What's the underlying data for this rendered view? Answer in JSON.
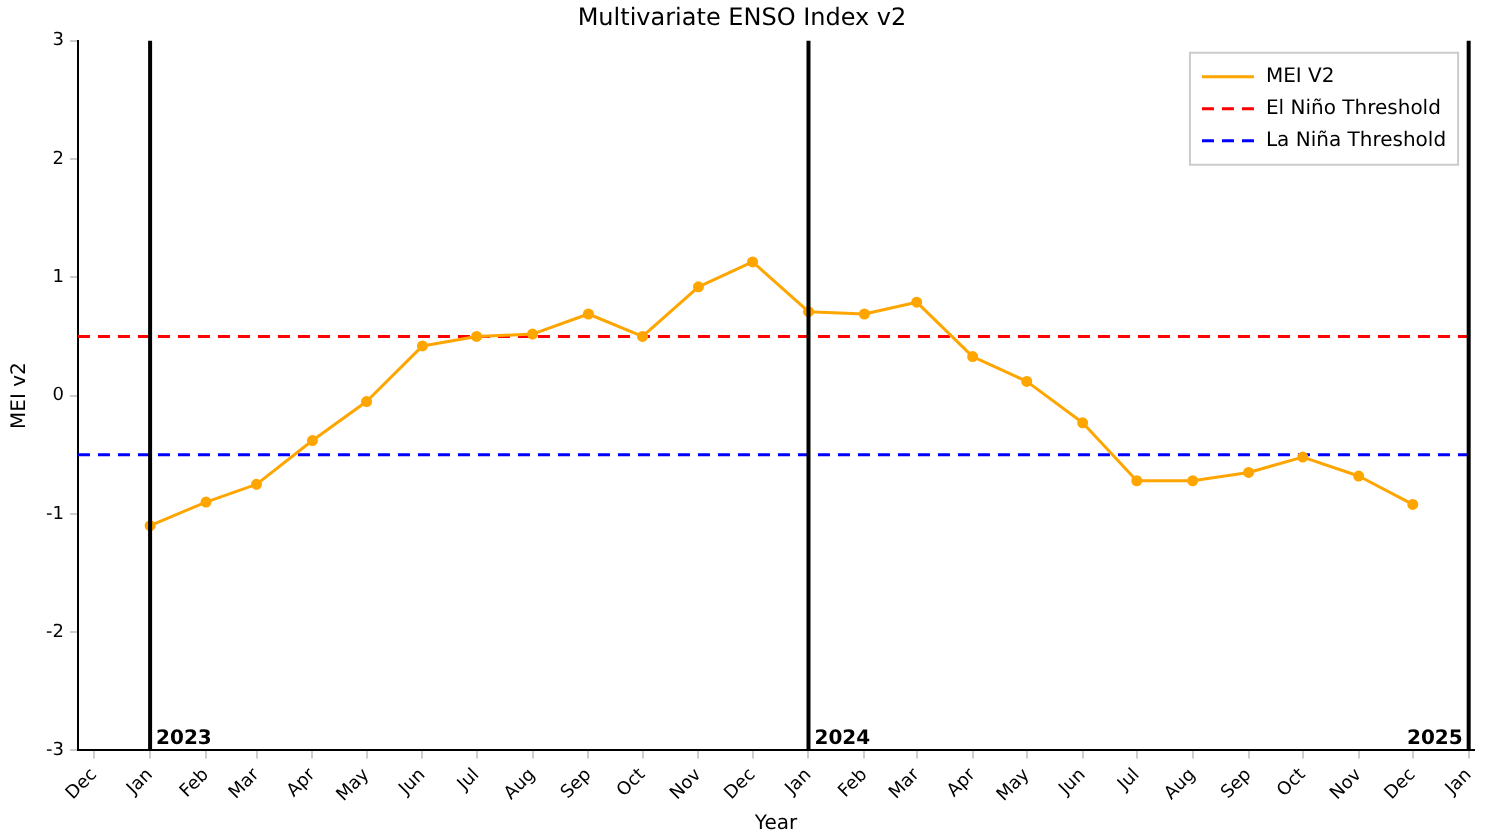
{
  "chart_data": {
    "type": "line",
    "title": "Multivariate ENSO Index v2",
    "xlabel": "Year",
    "ylabel": "MEI v2",
    "x": [
      "2023-01",
      "2023-02",
      "2023-03",
      "2023-04",
      "2023-05",
      "2023-06",
      "2023-07",
      "2023-08",
      "2023-09",
      "2023-10",
      "2023-11",
      "2023-12",
      "2024-01",
      "2024-02",
      "2024-03",
      "2024-04",
      "2024-05",
      "2024-06",
      "2024-07",
      "2024-08",
      "2024-09",
      "2024-10",
      "2024-11",
      "2024-12"
    ],
    "series": [
      {
        "name": "MEI V2",
        "color": "#ffa500",
        "values": [
          -1.1,
          -0.9,
          -0.75,
          -0.38,
          -0.05,
          0.42,
          0.5,
          0.52,
          0.69,
          0.5,
          0.92,
          1.13,
          0.71,
          0.69,
          0.79,
          0.33,
          0.12,
          -0.23,
          -0.72,
          -0.72,
          -0.65,
          -0.52,
          -0.68,
          -0.92
        ]
      }
    ],
    "ref_lines": [
      {
        "axis": "y",
        "value": 0.5,
        "label": "El Niño Threshold",
        "color": "#ff0000",
        "line_style": "dashed"
      },
      {
        "axis": "y",
        "value": -0.5,
        "label": "La Niña Threshold",
        "color": "#0000ff",
        "line_style": "dashed"
      },
      {
        "axis": "x",
        "value": "2023-01",
        "label": "2023",
        "color": "#000000",
        "line_style": "solid"
      },
      {
        "axis": "x",
        "value": "2024-01",
        "label": "2024",
        "color": "#000000",
        "line_style": "solid"
      },
      {
        "axis": "x",
        "value": "2025-01",
        "label": "2025",
        "color": "#000000",
        "line_style": "solid"
      }
    ],
    "xlim": [
      "2022-11-22",
      "2025-01-04"
    ],
    "xticks": [
      {
        "value": "2022-12",
        "label": "Dec"
      },
      {
        "value": "2023-01",
        "label": "Jan"
      },
      {
        "value": "2023-02",
        "label": "Feb"
      },
      {
        "value": "2023-03",
        "label": "Mar"
      },
      {
        "value": "2023-04",
        "label": "Apr"
      },
      {
        "value": "2023-05",
        "label": "May"
      },
      {
        "value": "2023-06",
        "label": "Jun"
      },
      {
        "value": "2023-07",
        "label": "Jul"
      },
      {
        "value": "2023-08",
        "label": "Aug"
      },
      {
        "value": "2023-09",
        "label": "Sep"
      },
      {
        "value": "2023-10",
        "label": "Oct"
      },
      {
        "value": "2023-11",
        "label": "Nov"
      },
      {
        "value": "2023-12",
        "label": "Dec"
      },
      {
        "value": "2024-01",
        "label": "Jan"
      },
      {
        "value": "2024-02",
        "label": "Feb"
      },
      {
        "value": "2024-03",
        "label": "Mar"
      },
      {
        "value": "2024-04",
        "label": "Apr"
      },
      {
        "value": "2024-05",
        "label": "May"
      },
      {
        "value": "2024-06",
        "label": "Jun"
      },
      {
        "value": "2024-07",
        "label": "Jul"
      },
      {
        "value": "2024-08",
        "label": "Aug"
      },
      {
        "value": "2024-09",
        "label": "Sep"
      },
      {
        "value": "2024-10",
        "label": "Oct"
      },
      {
        "value": "2024-11",
        "label": "Nov"
      },
      {
        "value": "2024-12",
        "label": "Dec"
      },
      {
        "value": "2025-01",
        "label": "Jan"
      }
    ],
    "ylim": [
      -3,
      3
    ],
    "yticks": [
      -3,
      -2,
      -1,
      0,
      1,
      2,
      3
    ],
    "grid": false,
    "legend": "top right",
    "marker": "circle",
    "line_style": "solid"
  }
}
